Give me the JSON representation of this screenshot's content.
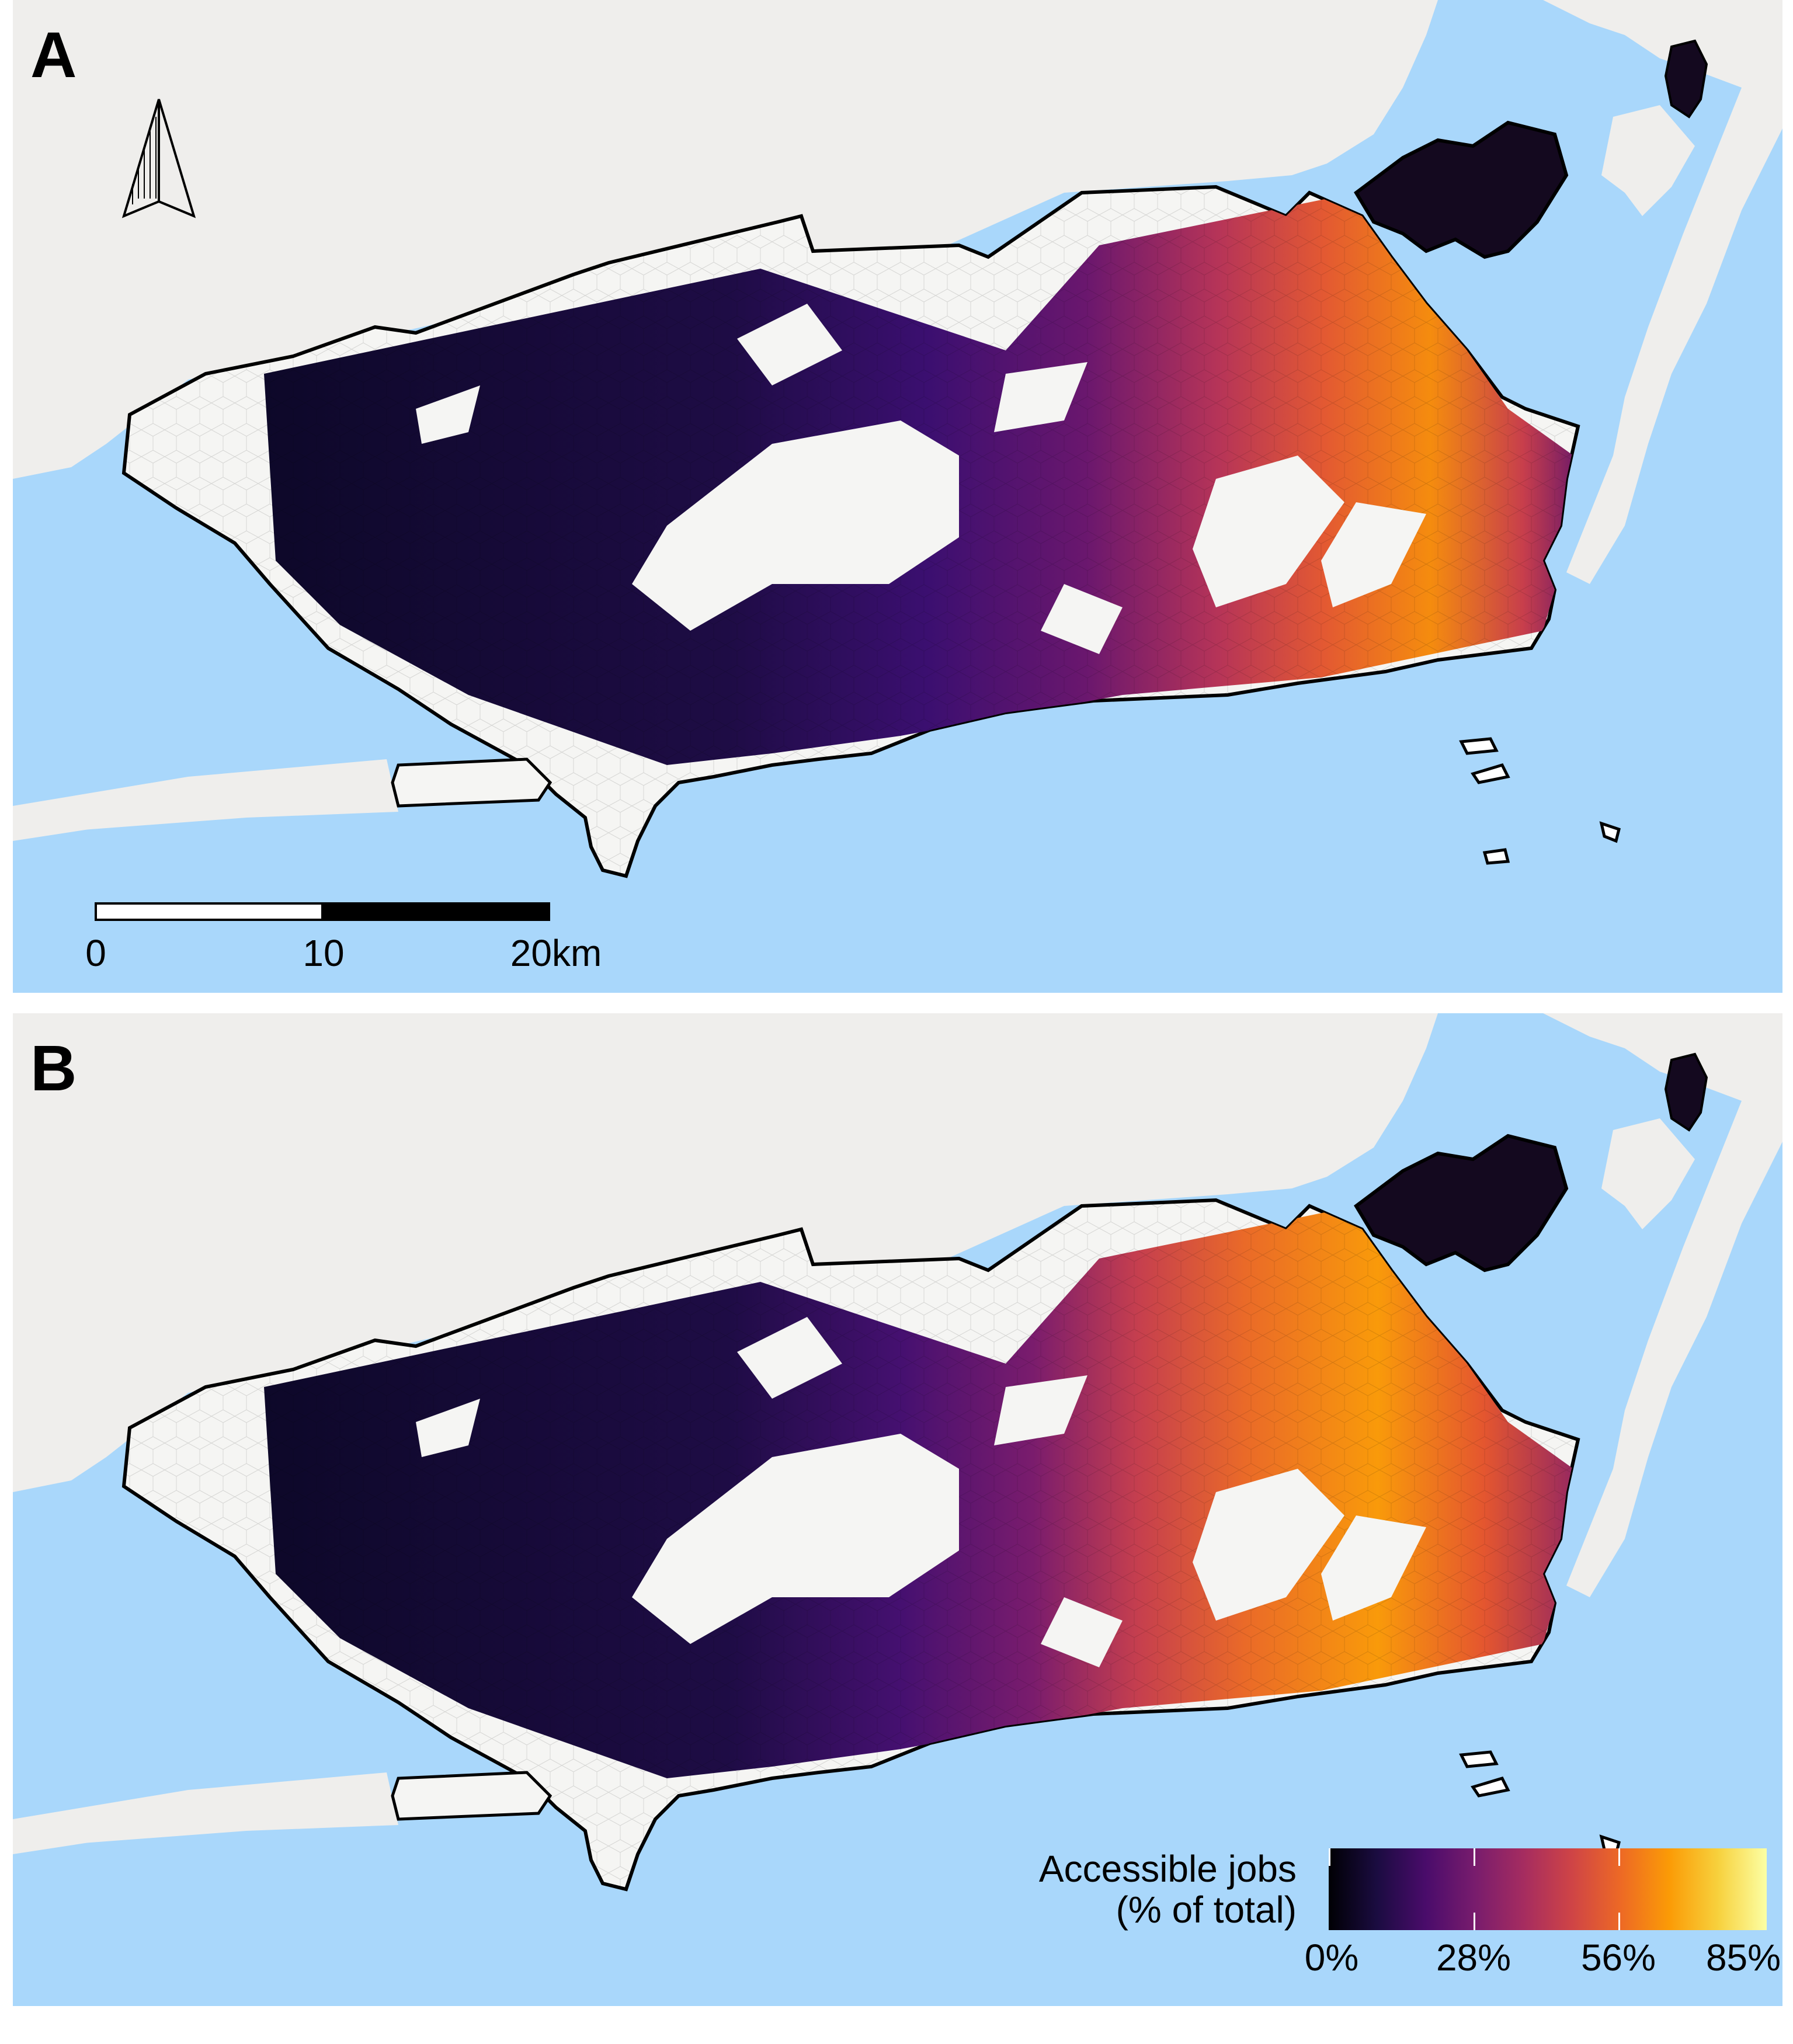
{
  "panels": [
    {
      "label": "A"
    },
    {
      "label": "B"
    }
  ],
  "scalebar": {
    "ticks": [
      "0",
      "10",
      "20km"
    ]
  },
  "legend": {
    "title_line1": "Accessible jobs",
    "title_line2": "(% of total)",
    "ticks": [
      "0%",
      "28%",
      "56%",
      "85%"
    ],
    "colormap": [
      "#000004",
      "#1b0c41",
      "#4a0c6b",
      "#781c6d",
      "#a52c60",
      "#cf4446",
      "#ed6925",
      "#fb9b06",
      "#f7d13d",
      "#fcffa4"
    ]
  },
  "colors": {
    "water": "#a9d7fb",
    "land": "#efeeec",
    "city_fill": "#f5f5f3",
    "boundary": "#000000"
  }
}
